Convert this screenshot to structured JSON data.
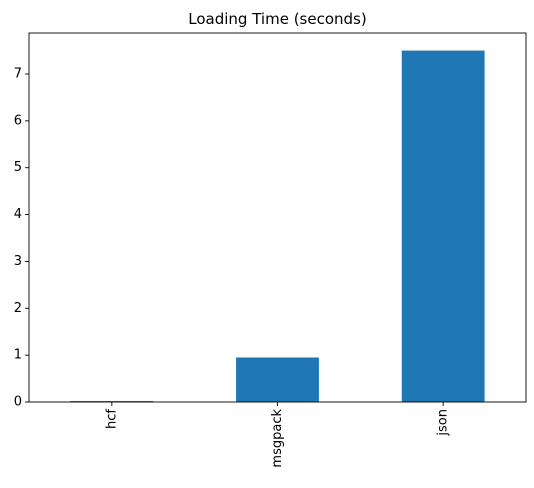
{
  "chart_data": {
    "type": "bar",
    "title": "Loading Time (seconds)",
    "xlabel": "",
    "ylabel": "",
    "categories": [
      "hcf",
      "msgpack",
      "json"
    ],
    "values": [
      0.02,
      0.95,
      7.5
    ],
    "ylim": [
      0,
      7.875
    ],
    "yticks": [
      0,
      1,
      2,
      3,
      4,
      5,
      6,
      7
    ],
    "ytick_labels": [
      "0",
      "1",
      "2",
      "3",
      "4",
      "5",
      "6",
      "7"
    ],
    "bar_color": "#1f77b4",
    "grid": false,
    "legend": "none",
    "xtick_rotation": "vertical"
  }
}
